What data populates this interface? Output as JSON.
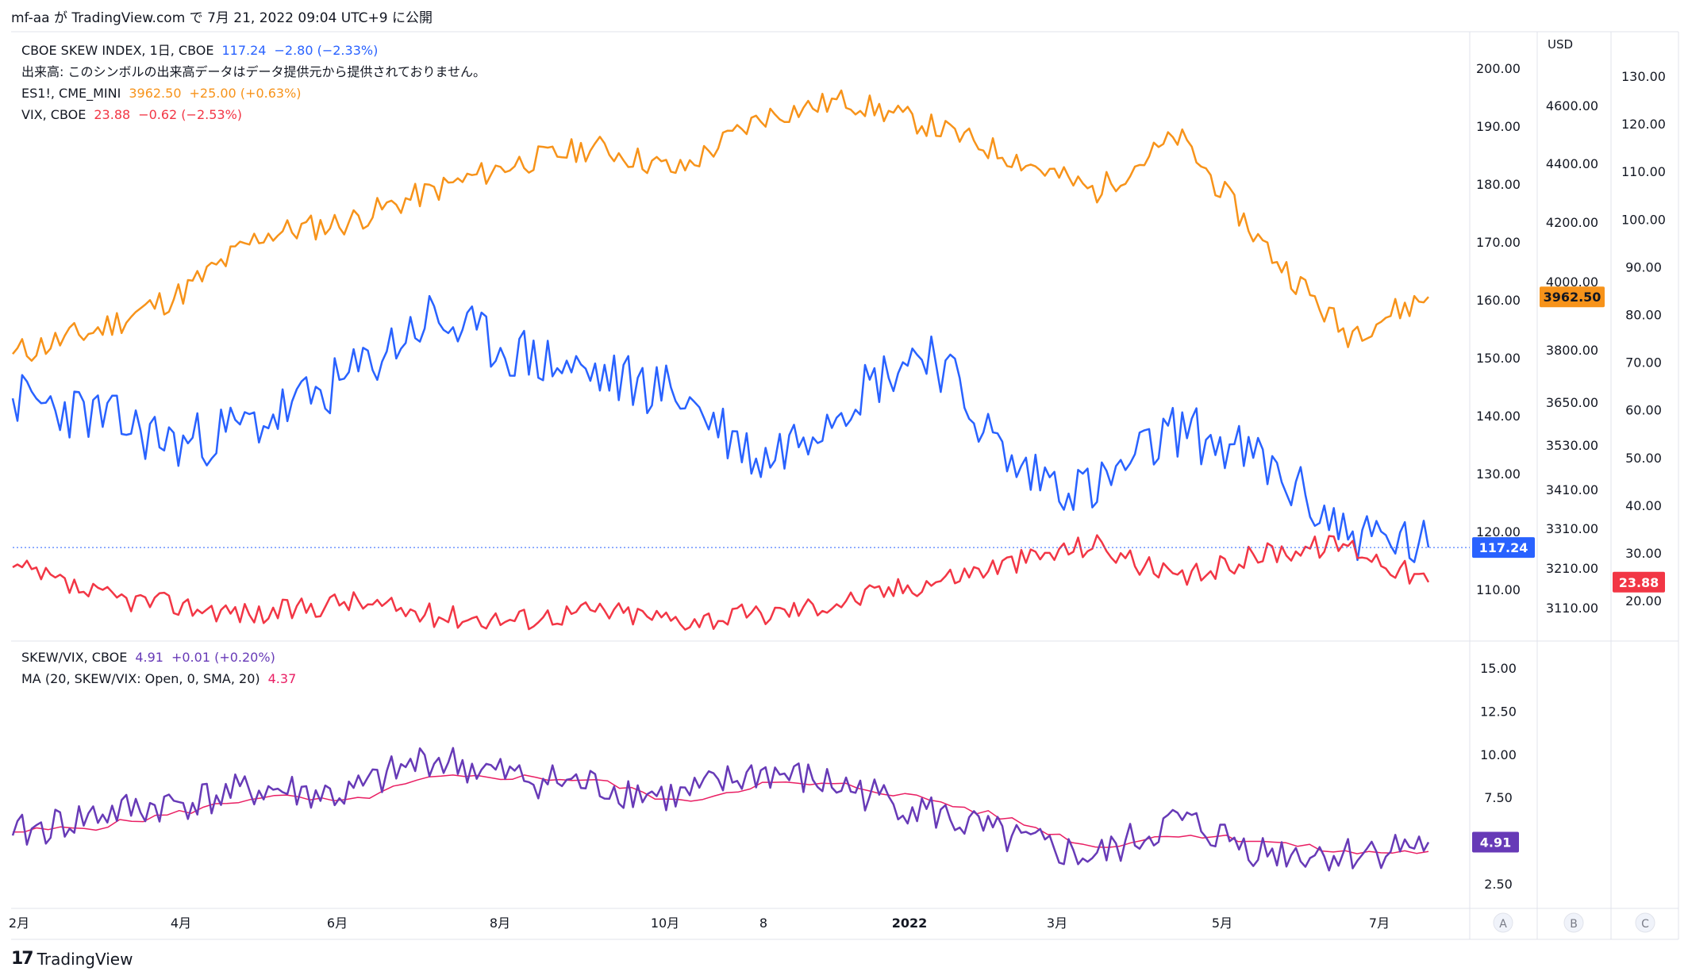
{
  "header": {
    "author": "mf-aa",
    "text": "mf-aa が TradingView.com で 7月 21, 2022 09:04 UTC+9 に公開"
  },
  "legend_main": [
    {
      "label": "CBOE SKEW INDEX, 1日, CBOE",
      "value": "117.24",
      "change": "−2.80 (−2.33%)",
      "color": "#2962ff"
    },
    {
      "label": "出来高: このシンボルの出来高データはデータ提供元から提供されておりません。",
      "value": "",
      "change": "",
      "color": "#131722"
    },
    {
      "label": "ES1!, CME_MINI",
      "value": "3962.50",
      "change": "+25.00 (+0.63%)",
      "color": "#f7931a"
    },
    {
      "label": "VIX, CBOE",
      "value": "23.88",
      "change": "−0.62 (−2.53%)",
      "color": "#f23645"
    }
  ],
  "legend_sub": [
    {
      "label": "SKEW/VIX, CBOE",
      "value": "4.91",
      "change": "+0.01 (+0.20%)",
      "color": "#673ab7"
    },
    {
      "label": "MA (20, SKEW/VIX: Open, 0, SMA, 20)",
      "value": "4.37",
      "change": "",
      "color": "#e91e63"
    }
  ],
  "axes": {
    "skew_ticks": [
      "200.00",
      "190.00",
      "180.00",
      "170.00",
      "160.00",
      "150.00",
      "140.00",
      "130.00",
      "120.00",
      "110.00"
    ],
    "es_unit": "USD",
    "es_ticks": [
      "4600.00",
      "4400.00",
      "4200.00",
      "4000.00",
      "3800.00",
      "3650.00",
      "3530.00",
      "3410.00",
      "3310.00",
      "3210.00",
      "3110.00"
    ],
    "vix_ticks": [
      "130.00",
      "120.00",
      "110.00",
      "100.00",
      "90.00",
      "80.00",
      "70.00",
      "60.00",
      "50.00",
      "40.00",
      "30.00",
      "20.00"
    ],
    "ratio_ticks": [
      "15.00",
      "12.50",
      "10.00",
      "7.50",
      "5.00",
      "2.50"
    ],
    "time_ticks": [
      "2月",
      "4月",
      "6月",
      "8月",
      "10月",
      "8",
      "2022",
      "3月",
      "5月",
      "7月"
    ],
    "scale_buttons": [
      "A",
      "B",
      "C"
    ]
  },
  "price_labels": {
    "es": "3962.50",
    "skew": "117.24",
    "vix": "23.88",
    "ratio": "4.91"
  },
  "colors": {
    "skew": "#2962ff",
    "es": "#f7931a",
    "vix": "#f23645",
    "ratio": "#673ab7",
    "ma": "#e91e63"
  },
  "chart_data": [
    {
      "type": "line",
      "title": "CBOE SKEW INDEX / ES1! / VIX",
      "x": [
        "2021-02",
        "2021-03",
        "2021-04",
        "2021-05",
        "2021-06",
        "2021-07",
        "2021-08",
        "2021-09",
        "2021-10",
        "2021-11",
        "2021-12",
        "2022-01",
        "2022-02",
        "2022-03",
        "2022-04",
        "2022-05",
        "2022-06",
        "2022-07"
      ],
      "series": [
        {
          "name": "CBOE SKEW INDEX",
          "axis": "skew",
          "values": [
            143,
            140,
            135,
            139,
            146,
            157,
            151,
            147,
            144,
            132,
            143,
            152,
            131,
            127,
            138,
            132,
            120,
            117.24
          ]
        },
        {
          "name": "ES1!",
          "axis": "es",
          "values": [
            3790,
            3860,
            3970,
            4160,
            4200,
            4300,
            4395,
            4455,
            4370,
            4560,
            4620,
            4530,
            4420,
            4300,
            4490,
            4130,
            3850,
            3962.5
          ]
        },
        {
          "name": "VIX",
          "axis": "vix",
          "values": [
            27,
            21,
            19,
            17,
            20,
            17,
            16,
            18,
            16,
            17,
            20,
            24,
            28,
            32,
            24,
            30,
            32,
            23.88
          ]
        }
      ],
      "ylim_skew": [
        105,
        205
      ],
      "ylim_vix": [
        15,
        135
      ]
    },
    {
      "type": "line",
      "title": "SKEW/VIX",
      "x": [
        "2021-02",
        "2021-03",
        "2021-04",
        "2021-05",
        "2021-06",
        "2021-07",
        "2021-08",
        "2021-09",
        "2021-10",
        "2021-11",
        "2021-12",
        "2022-01",
        "2022-02",
        "2022-03",
        "2022-04",
        "2022-05",
        "2022-06",
        "2022-07"
      ],
      "series": [
        {
          "name": "SKEW/VIX",
          "values": [
            5.3,
            6.5,
            7.2,
            8.0,
            7.6,
            9.8,
            8.7,
            8.2,
            7.5,
            9.0,
            8.1,
            6.7,
            5.0,
            4.0,
            6.2,
            4.4,
            4.2,
            4.91
          ]
        },
        {
          "name": "MA",
          "values": [
            5.5,
            5.8,
            6.6,
            7.6,
            7.2,
            8.6,
            8.7,
            8.5,
            7.2,
            8.3,
            8.2,
            7.4,
            6.2,
            4.6,
            5.4,
            5.0,
            4.3,
            4.37
          ]
        }
      ],
      "ylim": [
        1.5,
        16.5
      ]
    }
  ]
}
